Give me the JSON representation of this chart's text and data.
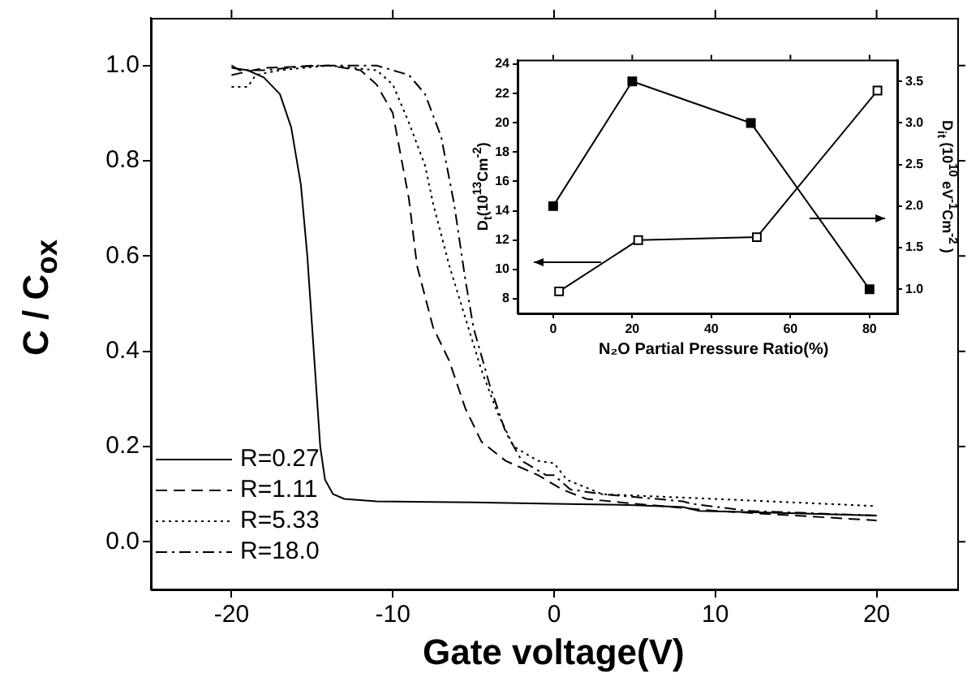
{
  "chart_data": [
    {
      "type": "line",
      "xlabel": "Gate voltage(V)",
      "ylabel": "C / C$_{ox}$",
      "xlim": [
        -25,
        25
      ],
      "xticks": [
        -20,
        -10,
        0,
        10,
        20
      ],
      "ylim": [
        -0.1,
        1.1
      ],
      "yticks": [
        {
          "value": 0,
          "label": "0.0"
        },
        {
          "value": 0.2,
          "label": "0.2"
        },
        {
          "value": 0.4,
          "label": "0.4"
        },
        {
          "value": 0.6,
          "label": "0.6"
        },
        {
          "value": 0.8,
          "label": "0.8"
        },
        {
          "value": 1,
          "label": "1.0"
        }
      ],
      "grid": false,
      "legend": "bottom left",
      "marker": "none",
      "series": [
        {
          "name": "R=0.27",
          "color": "#000000",
          "line_style": "solid",
          "x": [
            -20,
            -19,
            -18,
            -17,
            -16.3,
            -15.7,
            -15.3,
            -14.9,
            -14.5,
            -14.2,
            -13.7,
            -13,
            -11,
            -5,
            0,
            5,
            8,
            9,
            15,
            20
          ],
          "values": [
            0.995,
            0.99,
            0.975,
            0.94,
            0.87,
            0.75,
            0.6,
            0.4,
            0.2,
            0.13,
            0.1,
            0.09,
            0.085,
            0.083,
            0.08,
            0.077,
            0.073,
            0.065,
            0.06,
            0.055
          ]
        },
        {
          "name": "R=1.11",
          "color": "#000000",
          "line_style": "dashed",
          "x": [
            -20,
            -18,
            -14,
            -12,
            -11,
            -10,
            -9,
            -8.5,
            -7.5,
            -6.5,
            -5.5,
            -4.5,
            -3,
            -1,
            0.5,
            2,
            5,
            10,
            15,
            20
          ],
          "values": [
            0.98,
            0.995,
            1.0,
            0.99,
            0.96,
            0.9,
            0.72,
            0.58,
            0.45,
            0.38,
            0.28,
            0.21,
            0.17,
            0.14,
            0.11,
            0.09,
            0.08,
            0.065,
            0.055,
            0.045
          ]
        },
        {
          "name": "R=5.33",
          "color": "#000000",
          "line_style": "dotted",
          "x": [
            -20,
            -19,
            -18.5,
            -17,
            -14,
            -11,
            -10,
            -9,
            -8,
            -7.5,
            -6.5,
            -5.5,
            -4.5,
            -3.5,
            -2.5,
            -1,
            0,
            0.8,
            3,
            10,
            20
          ],
          "values": [
            0.955,
            0.955,
            0.98,
            0.99,
            1.0,
            0.99,
            0.96,
            0.88,
            0.79,
            0.71,
            0.58,
            0.47,
            0.36,
            0.27,
            0.2,
            0.17,
            0.165,
            0.13,
            0.1,
            0.09,
            0.075
          ]
        },
        {
          "name": "R=18.0",
          "color": "#000000",
          "line_style": "dashdot",
          "x": [
            -20,
            -19.5,
            -18,
            -15,
            -11,
            -9,
            -8,
            -7,
            -6.2,
            -5.5,
            -5,
            -4,
            -3,
            -2,
            -0.5,
            0,
            1,
            3,
            8,
            8.5,
            12,
            20
          ],
          "values": [
            1.0,
            0.99,
            0.99,
            1.0,
            1.0,
            0.98,
            0.94,
            0.85,
            0.71,
            0.55,
            0.45,
            0.33,
            0.23,
            0.17,
            0.14,
            0.14,
            0.11,
            0.1,
            0.085,
            0.08,
            0.065,
            0.055
          ]
        }
      ]
    },
    {
      "type": "line",
      "xlabel": "N₂O Partial Pressure Ratio(%)",
      "ylabel": "D$_{t}$(10$^{13}$Cm$^{-2}$)",
      "y2label": "D$_{it}$ (10$^{10}$ eV$^{-1}$Cm$^{-2}$ )",
      "xlim": [
        -9,
        87
      ],
      "xticks": [
        0,
        20,
        40,
        60,
        80
      ],
      "ylim": [
        7,
        24.3
      ],
      "yticks": [
        8,
        10,
        12,
        14,
        16,
        18,
        20,
        22,
        24
      ],
      "y2lim": [
        0.71,
        3.76
      ],
      "y2ticks": [
        {
          "value": 1,
          "label": "1.0"
        },
        {
          "value": 1.5,
          "label": "1.5"
        },
        {
          "value": 2,
          "label": "2.0"
        },
        {
          "value": 2.5,
          "label": "2.5"
        },
        {
          "value": 3,
          "label": "3.0"
        },
        {
          "value": 3.5,
          "label": "3.5"
        }
      ],
      "grid": false,
      "legend": false,
      "marker": "square",
      "series": [
        {
          "color": "#000000",
          "axis": "y2",
          "x": [
            0,
            20,
            50,
            80
          ],
          "values": [
            2.0,
            3.5,
            3.0,
            1.0
          ]
        },
        {
          "color": "#000000",
          "axis": "y",
          "x": [
            1.5,
            21.5,
            51.5,
            82
          ],
          "values": [
            8.5,
            12.0,
            12.2,
            22.2
          ]
        }
      ]
    }
  ]
}
